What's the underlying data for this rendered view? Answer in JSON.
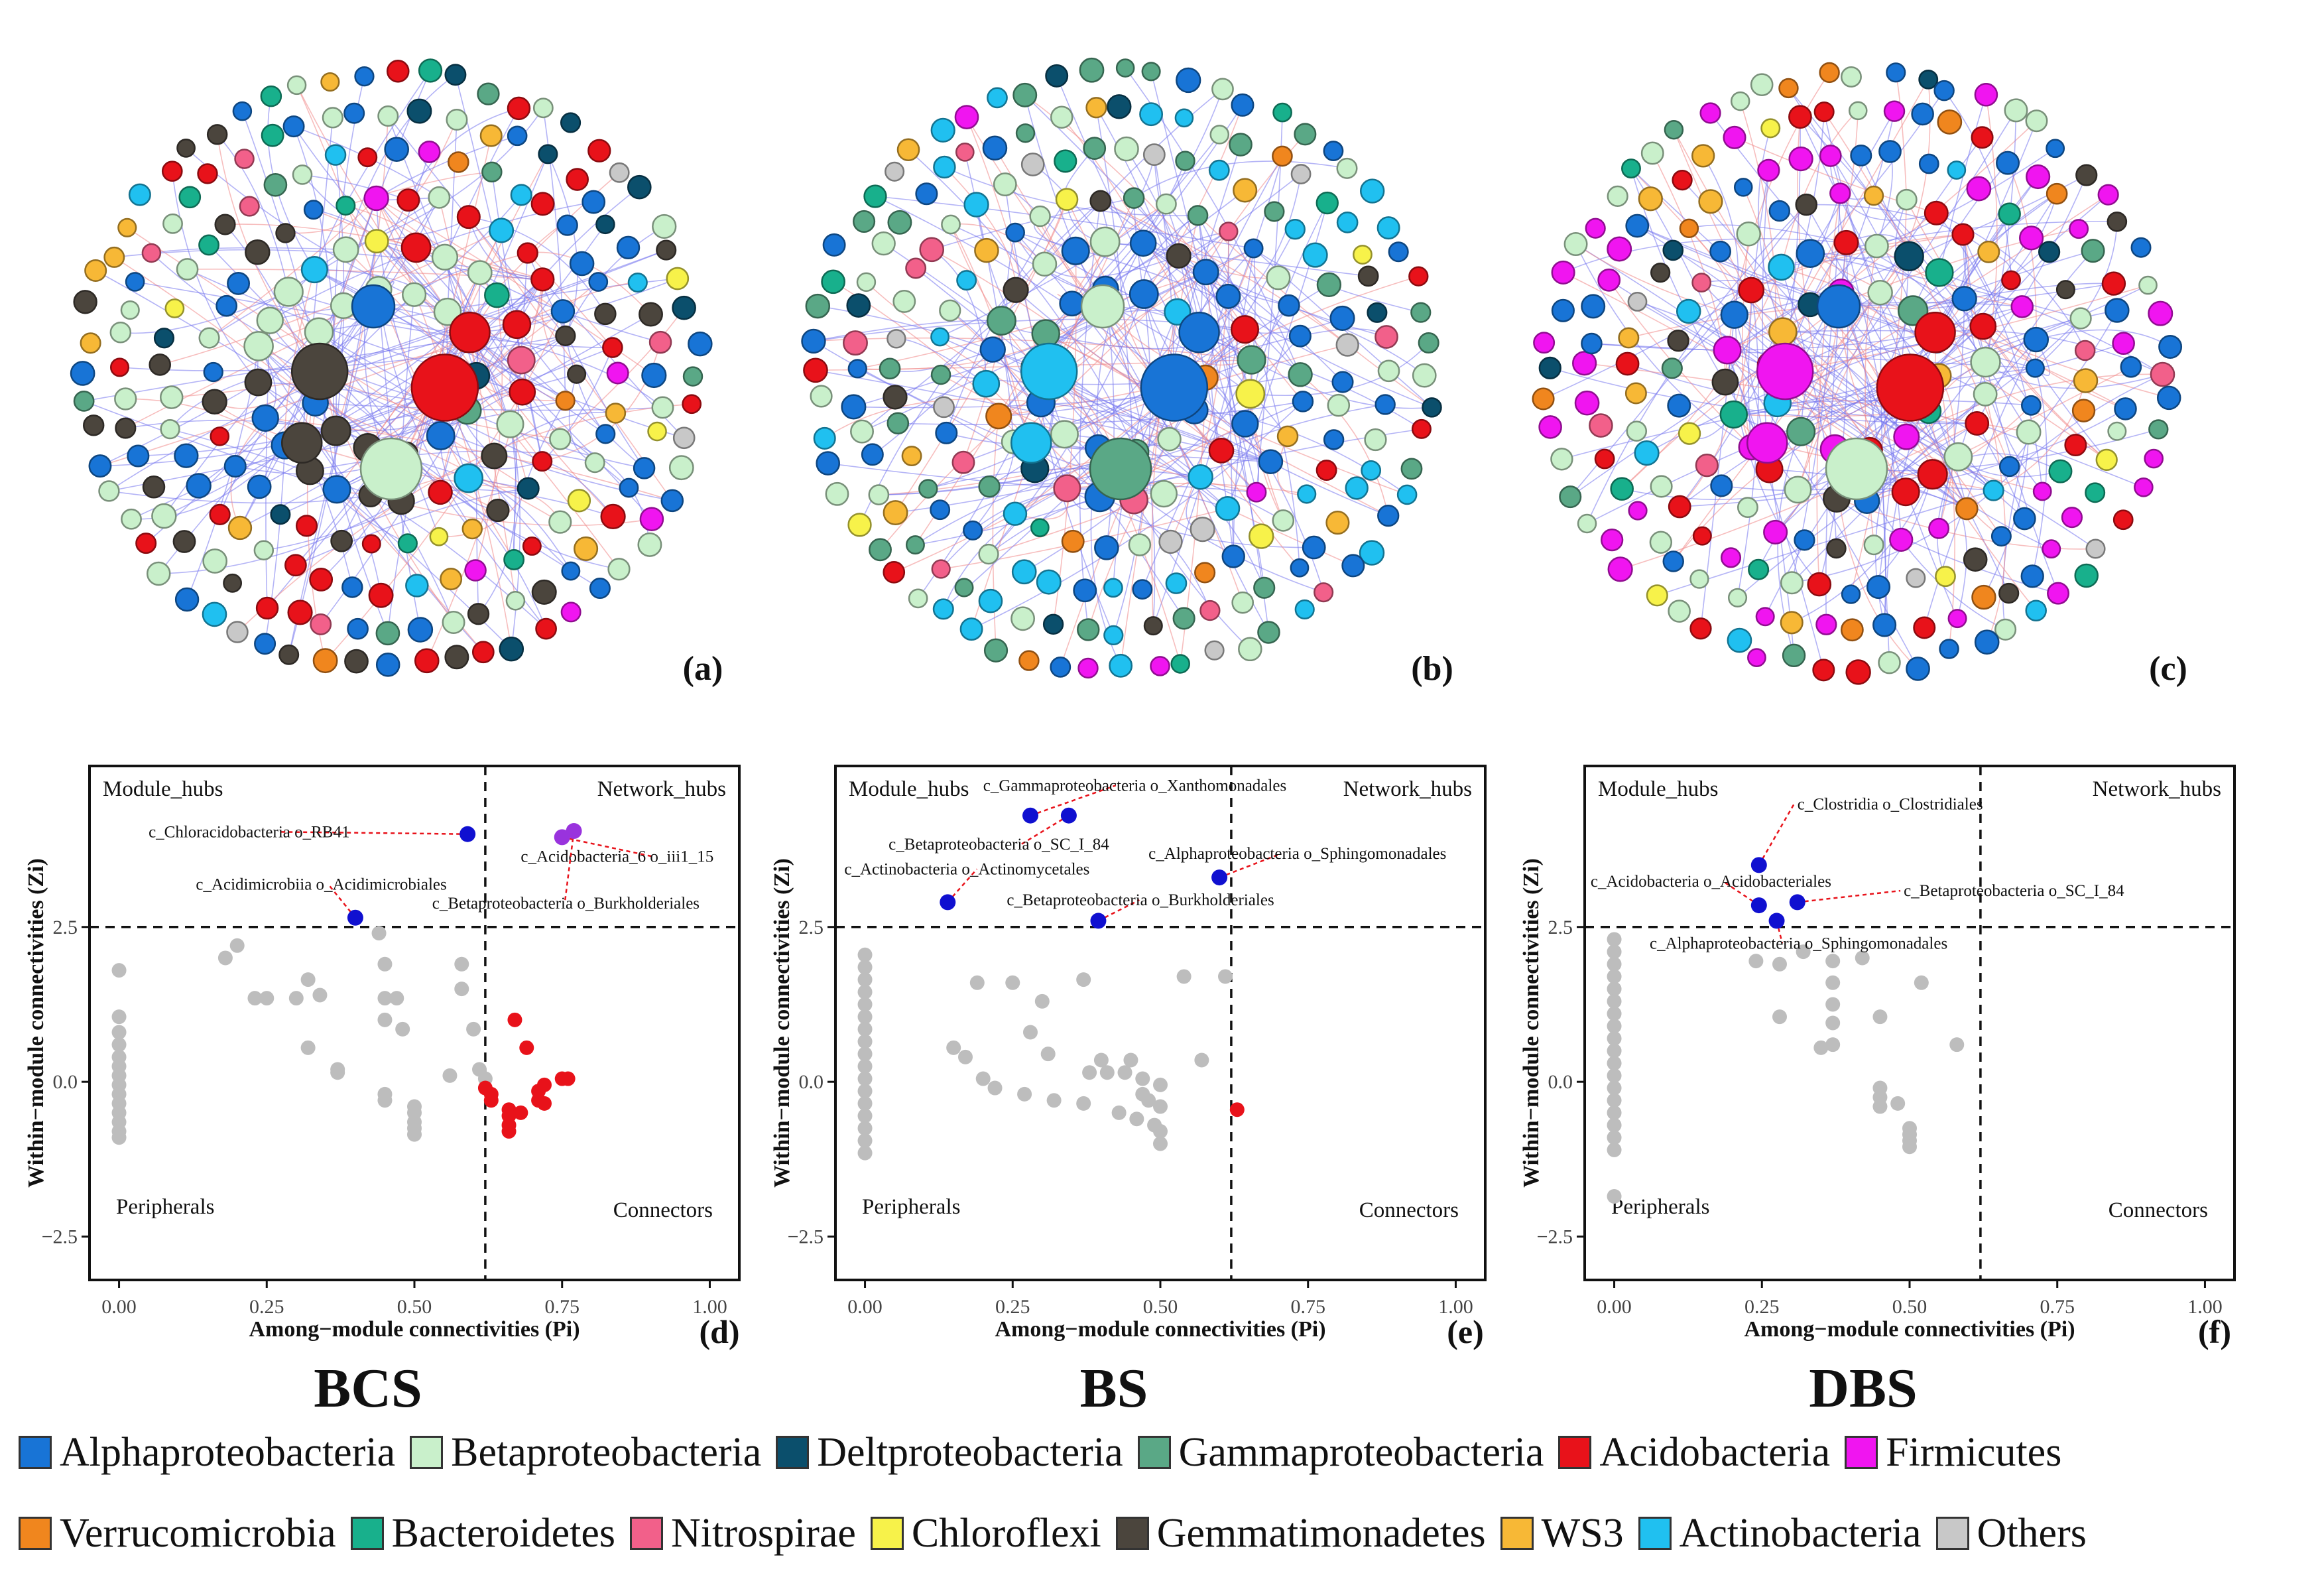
{
  "colors": {
    "Alphaproteobacteria": "#1874d6",
    "Betaproteobacteria": "#c9f0cb",
    "Deltproteobacteria": "#0b4f6c",
    "Gammaproteobacteria": "#5aa886",
    "Acidobacteria": "#e8121a",
    "Firmicutes": "#f015f0",
    "Verrucomicrobia": "#f0861e",
    "Bacteroidetes": "#18b08c",
    "Nitrospirae": "#f2608a",
    "Chloroflexi": "#f7f24a",
    "Gemmatimonadetes": "#4b453d",
    "WS3": "#f7b836",
    "Actinobacteria": "#20c0f0",
    "Others": "#c8c8c8"
  },
  "networks": [
    {
      "letter": "(a)",
      "dominant": [
        "Acidobacteria",
        "Gemmatimonadetes",
        "Betaproteobacteria",
        "Alphaproteobacteria"
      ]
    },
    {
      "letter": "(b)",
      "dominant": [
        "Alphaproteobacteria",
        "Actinobacteria",
        "Gammaproteobacteria",
        "Betaproteobacteria"
      ]
    },
    {
      "letter": "(c)",
      "dominant": [
        "Acidobacteria",
        "Firmicutes",
        "Betaproteobacteria",
        "Alphaproteobacteria"
      ]
    }
  ],
  "chart_data": [
    {
      "type": "scatter",
      "letter": "(d)",
      "group": "BCS",
      "xlabel": "Among−module connectivities (Pi)",
      "ylabel": "Within−module connectivities (Zi)",
      "xlim": [
        -0.05,
        1.05
      ],
      "ylim": [
        -3.2,
        5.1
      ],
      "xticks": [
        "0.00",
        "0.25",
        "0.50",
        "0.75",
        "1.00"
      ],
      "yticks": [
        "−2.5",
        "0.0",
        "2.5"
      ],
      "thresholds": {
        "pi": 0.62,
        "zi": 2.5
      },
      "quadrants": {
        "tl": "Module_hubs",
        "tr": "Network_hubs",
        "bl": "Peripherals",
        "br": "Connectors"
      },
      "peripherals": [
        [
          0,
          1.8
        ],
        [
          0,
          1.05
        ],
        [
          0,
          0.8
        ],
        [
          0,
          0.6
        ],
        [
          0,
          0.4
        ],
        [
          0,
          0.25
        ],
        [
          0,
          0.1
        ],
        [
          0,
          -0.05
        ],
        [
          0,
          -0.2
        ],
        [
          0,
          -0.35
        ],
        [
          0,
          -0.5
        ],
        [
          0,
          -0.65
        ],
        [
          0,
          -0.8
        ],
        [
          0,
          -0.9
        ],
        [
          0.18,
          2.0
        ],
        [
          0.2,
          2.2
        ],
        [
          0.23,
          1.35
        ],
        [
          0.25,
          1.35
        ],
        [
          0.3,
          1.35
        ],
        [
          0.32,
          0.55
        ],
        [
          0.32,
          1.65
        ],
        [
          0.34,
          1.4
        ],
        [
          0.37,
          0.2
        ],
        [
          0.37,
          0.15
        ],
        [
          0.44,
          2.4
        ],
        [
          0.45,
          1.0
        ],
        [
          0.45,
          1.35
        ],
        [
          0.45,
          1.9
        ],
        [
          0.45,
          -0.2
        ],
        [
          0.45,
          -0.3
        ],
        [
          0.47,
          1.35
        ],
        [
          0.48,
          0.85
        ],
        [
          0.5,
          -0.4
        ],
        [
          0.5,
          -0.5
        ],
        [
          0.5,
          -0.65
        ],
        [
          0.5,
          -0.75
        ],
        [
          0.5,
          -0.85
        ],
        [
          0.56,
          0.1
        ],
        [
          0.58,
          1.9
        ],
        [
          0.58,
          1.5
        ],
        [
          0.6,
          0.85
        ],
        [
          0.61,
          0.2
        ],
        [
          0.62,
          0.05
        ]
      ],
      "connectors": [
        [
          0.62,
          -0.1
        ],
        [
          0.63,
          -0.2
        ],
        [
          0.63,
          -0.3
        ],
        [
          0.66,
          -0.45
        ],
        [
          0.66,
          -0.55
        ],
        [
          0.66,
          -0.7
        ],
        [
          0.66,
          -0.8
        ],
        [
          0.67,
          1.0
        ],
        [
          0.68,
          -0.5
        ],
        [
          0.69,
          0.55
        ],
        [
          0.71,
          -0.3
        ],
        [
          0.71,
          -0.15
        ],
        [
          0.72,
          -0.05
        ],
        [
          0.72,
          -0.35
        ],
        [
          0.75,
          0.05
        ],
        [
          0.76,
          0.05
        ]
      ],
      "hubs": [
        {
          "pi": 0.59,
          "zi": 4.0,
          "color": "#1010d0",
          "label": "c_Chloracidobacteria o_RB41",
          "lx": 0.05,
          "ly": 3.95
        },
        {
          "pi": 0.4,
          "zi": 2.65,
          "color": "#1010d0",
          "label": "c_Acidimicrobiia o_Acidimicrobiales",
          "lx": 0.13,
          "ly": 3.1
        },
        {
          "pi": 0.75,
          "zi": 3.95,
          "color": "#9933dd",
          "label": "c_Acidobacteria_6 o_iii1_15",
          "lx": 0.68,
          "ly": 3.55
        },
        {
          "pi": 0.77,
          "zi": 4.05,
          "color": "#9933dd",
          "label": "c_Betaproteobacteria o_Burkholderiales",
          "lx": 0.53,
          "ly": 2.8
        }
      ]
    },
    {
      "type": "scatter",
      "letter": "(e)",
      "group": "BS",
      "xlabel": "Among−module connectivities (Pi)",
      "ylabel": "Within−module connectivities (Zi)",
      "xlim": [
        -0.05,
        1.05
      ],
      "ylim": [
        -3.2,
        5.1
      ],
      "xticks": [
        "0.00",
        "0.25",
        "0.50",
        "0.75",
        "1.00"
      ],
      "yticks": [
        "−2.5",
        "0.0",
        "2.5"
      ],
      "thresholds": {
        "pi": 0.62,
        "zi": 2.5
      },
      "quadrants": {
        "tl": "Module_hubs",
        "tr": "Network_hubs",
        "bl": "Peripherals",
        "br": "Connectors"
      },
      "peripherals": [
        [
          0,
          2.05
        ],
        [
          0,
          1.85
        ],
        [
          0,
          1.65
        ],
        [
          0,
          1.45
        ],
        [
          0,
          1.25
        ],
        [
          0,
          1.05
        ],
        [
          0,
          0.85
        ],
        [
          0,
          0.65
        ],
        [
          0,
          0.45
        ],
        [
          0,
          0.25
        ],
        [
          0,
          0.05
        ],
        [
          0,
          -0.15
        ],
        [
          0,
          -0.35
        ],
        [
          0,
          -0.55
        ],
        [
          0,
          -0.75
        ],
        [
          0,
          -0.95
        ],
        [
          0,
          -1.15
        ],
        [
          0.15,
          0.55
        ],
        [
          0.17,
          0.4
        ],
        [
          0.19,
          1.6
        ],
        [
          0.2,
          0.05
        ],
        [
          0.22,
          -0.1
        ],
        [
          0.25,
          1.6
        ],
        [
          0.27,
          -0.2
        ],
        [
          0.28,
          0.8
        ],
        [
          0.3,
          1.3
        ],
        [
          0.31,
          0.45
        ],
        [
          0.32,
          -0.3
        ],
        [
          0.37,
          1.65
        ],
        [
          0.37,
          -0.35
        ],
        [
          0.38,
          0.15
        ],
        [
          0.4,
          0.35
        ],
        [
          0.41,
          0.15
        ],
        [
          0.43,
          -0.5
        ],
        [
          0.44,
          0.15
        ],
        [
          0.45,
          0.35
        ],
        [
          0.46,
          -0.6
        ],
        [
          0.47,
          -0.2
        ],
        [
          0.47,
          0.05
        ],
        [
          0.48,
          -0.3
        ],
        [
          0.49,
          -0.7
        ],
        [
          0.5,
          -1.0
        ],
        [
          0.5,
          -0.05
        ],
        [
          0.5,
          -0.4
        ],
        [
          0.5,
          -0.8
        ],
        [
          0.54,
          1.7
        ],
        [
          0.57,
          0.35
        ],
        [
          0.61,
          1.7
        ]
      ],
      "connectors": [
        [
          0.63,
          -0.45
        ]
      ],
      "hubs": [
        {
          "pi": 0.28,
          "zi": 4.3,
          "color": "#1010d0",
          "label": "c_Gammaproteobacteria o_Xanthomonadales",
          "lx": 0.2,
          "ly": 4.7
        },
        {
          "pi": 0.345,
          "zi": 4.3,
          "color": "#1010d0",
          "label": "c_Betaproteobacteria o_SC_I_84",
          "lx": 0.04,
          "ly": 3.75
        },
        {
          "pi": 0.14,
          "zi": 2.9,
          "color": "#1010d0",
          "label": "c_Actinobacteria o_Actinomycetales",
          "lx": -0.035,
          "ly": 3.35
        },
        {
          "pi": 0.6,
          "zi": 3.3,
          "color": "#1010d0",
          "label": "c_Alphaproteobacteria o_Sphingomonadales",
          "lx": 0.48,
          "ly": 3.6
        },
        {
          "pi": 0.395,
          "zi": 2.6,
          "color": "#1010d0",
          "label": "c_Betaproteobacteria o_Burkholderiales",
          "lx": 0.24,
          "ly": 2.85
        }
      ]
    },
    {
      "type": "scatter",
      "letter": "(f)",
      "group": "DBS",
      "xlabel": "Among−module connectivities (Pi)",
      "ylabel": "Within−module connectivities (Zi)",
      "xlim": [
        -0.05,
        1.05
      ],
      "ylim": [
        -3.2,
        5.1
      ],
      "xticks": [
        "0.00",
        "0.25",
        "0.50",
        "0.75",
        "1.00"
      ],
      "yticks": [
        "−2.5",
        "0.0",
        "2.5"
      ],
      "thresholds": {
        "pi": 0.62,
        "zi": 2.5
      },
      "quadrants": {
        "tl": "Module_hubs",
        "tr": "Network_hubs",
        "bl": "Peripherals",
        "br": "Connectors"
      },
      "peripherals": [
        [
          0,
          2.3
        ],
        [
          0,
          2.1
        ],
        [
          0,
          1.9
        ],
        [
          0,
          1.7
        ],
        [
          0,
          1.5
        ],
        [
          0,
          1.3
        ],
        [
          0,
          1.1
        ],
        [
          0,
          0.9
        ],
        [
          0,
          0.7
        ],
        [
          0,
          0.5
        ],
        [
          0,
          0.3
        ],
        [
          0,
          0.1
        ],
        [
          0,
          -0.1
        ],
        [
          0,
          -0.3
        ],
        [
          0,
          -0.5
        ],
        [
          0,
          -0.7
        ],
        [
          0,
          -0.9
        ],
        [
          0,
          -1.1
        ],
        [
          0,
          -1.85
        ],
        [
          0.24,
          1.95
        ],
        [
          0.28,
          1.9
        ],
        [
          0.28,
          1.05
        ],
        [
          0.32,
          2.1
        ],
        [
          0.35,
          0.55
        ],
        [
          0.37,
          1.95
        ],
        [
          0.37,
          1.6
        ],
        [
          0.37,
          1.25
        ],
        [
          0.37,
          0.95
        ],
        [
          0.37,
          0.6
        ],
        [
          0.42,
          2.0
        ],
        [
          0.45,
          1.05
        ],
        [
          0.45,
          -0.1
        ],
        [
          0.45,
          -0.25
        ],
        [
          0.45,
          -0.4
        ],
        [
          0.48,
          -0.35
        ],
        [
          0.5,
          -0.75
        ],
        [
          0.5,
          -0.85
        ],
        [
          0.5,
          -0.95
        ],
        [
          0.5,
          -1.05
        ],
        [
          0.52,
          1.6
        ],
        [
          0.58,
          0.6
        ]
      ],
      "connectors": [],
      "hubs": [
        {
          "pi": 0.245,
          "zi": 3.5,
          "color": "#1010d0",
          "label": "c_Clostridia o_Clostridiales",
          "lx": 0.31,
          "ly": 4.4
        },
        {
          "pi": 0.245,
          "zi": 2.85,
          "color": "#1010d0",
          "label": "c_Acidobacteria o_Acidobacteriales",
          "lx": -0.04,
          "ly": 3.15
        },
        {
          "pi": 0.275,
          "zi": 2.6,
          "color": "#1010d0",
          "label": "c_Alphaproteobacteria o_Sphingomonadales",
          "lx": 0.06,
          "ly": 2.15
        },
        {
          "pi": 0.31,
          "zi": 2.9,
          "color": "#1010d0",
          "label": "c_Betaproteobacteria o_SC_I_84",
          "lx": 0.49,
          "ly": 3.0
        }
      ]
    }
  ],
  "group_titles": [
    "BCS",
    "BS",
    "DBS"
  ],
  "legend": {
    "row1": [
      "Alphaproteobacteria",
      "Betaproteobacteria",
      "Deltproteobacteria",
      "Gammaproteobacteria",
      "Acidobacteria",
      "Firmicutes"
    ],
    "row2": [
      "Verrucomicrobia",
      "Bacteroidetes",
      "Nitrospirae",
      "Chloroflexi",
      "Gemmatimonadetes",
      "WS3",
      "Actinobacteria",
      "Others"
    ]
  }
}
